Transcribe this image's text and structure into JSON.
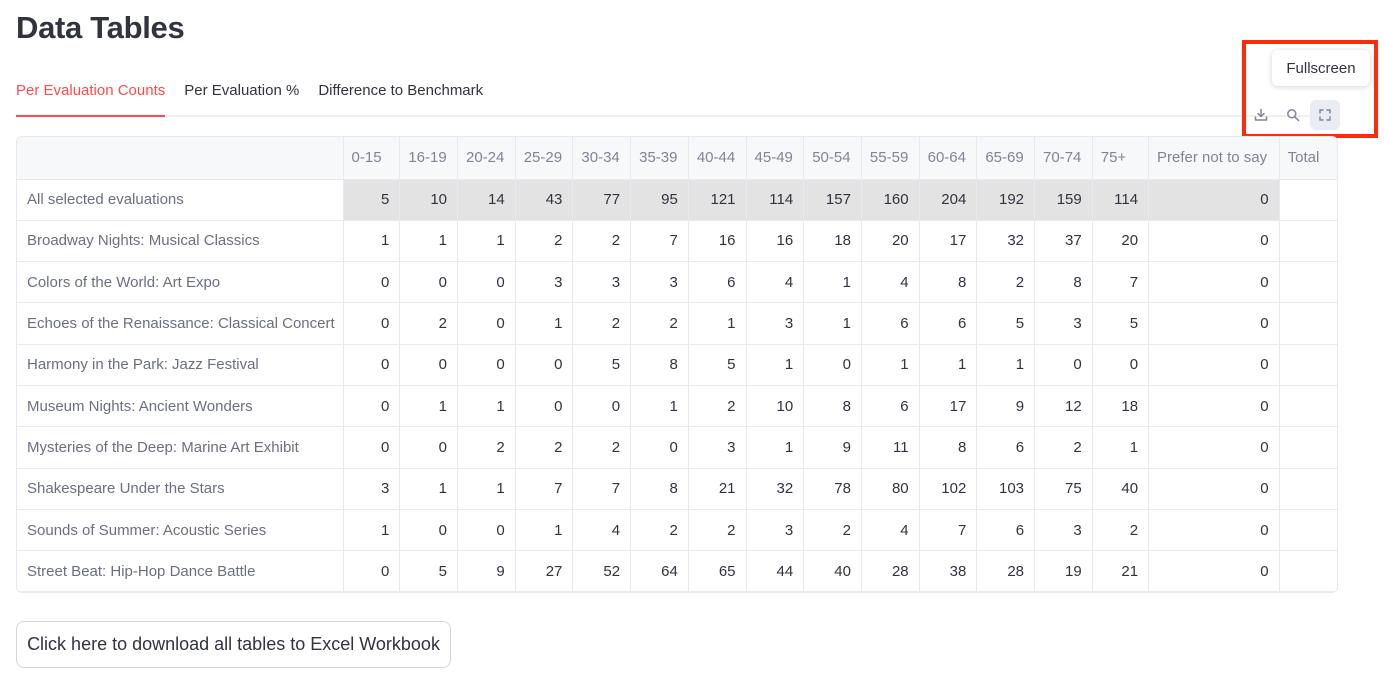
{
  "page": {
    "title": "Data Tables"
  },
  "tabs": [
    {
      "label": "Per Evaluation Counts",
      "active": true
    },
    {
      "label": "Per Evaluation %",
      "active": false
    },
    {
      "label": "Difference to Benchmark",
      "active": false
    }
  ],
  "toolbar": {
    "tooltip": "Fullscreen",
    "icons": [
      "download-icon",
      "search-icon",
      "fullscreen-icon"
    ]
  },
  "table": {
    "columns": [
      "",
      "0-15",
      "16-19",
      "20-24",
      "25-29",
      "30-34",
      "35-39",
      "40-44",
      "45-49",
      "50-54",
      "55-59",
      "60-64",
      "65-69",
      "70-74",
      "75+",
      "Prefer not to say",
      "Total"
    ],
    "rows": [
      {
        "label": "All selected evaluations",
        "values": [
          "5",
          "10",
          "14",
          "43",
          "77",
          "95",
          "121",
          "114",
          "157",
          "160",
          "204",
          "192",
          "159",
          "114",
          "0",
          ""
        ]
      },
      {
        "label": "Broadway Nights: Musical Classics",
        "values": [
          "1",
          "1",
          "1",
          "2",
          "2",
          "7",
          "16",
          "16",
          "18",
          "20",
          "17",
          "32",
          "37",
          "20",
          "0",
          ""
        ]
      },
      {
        "label": "Colors of the World: Art Expo",
        "values": [
          "0",
          "0",
          "0",
          "3",
          "3",
          "3",
          "6",
          "4",
          "1",
          "4",
          "8",
          "2",
          "8",
          "7",
          "0",
          ""
        ]
      },
      {
        "label": "Echoes of the Renaissance: Classical Concert",
        "values": [
          "0",
          "2",
          "0",
          "1",
          "2",
          "2",
          "1",
          "3",
          "1",
          "6",
          "6",
          "5",
          "3",
          "5",
          "0",
          ""
        ]
      },
      {
        "label": "Harmony in the Park: Jazz Festival",
        "values": [
          "0",
          "0",
          "0",
          "0",
          "5",
          "8",
          "5",
          "1",
          "0",
          "1",
          "1",
          "1",
          "0",
          "0",
          "0",
          ""
        ]
      },
      {
        "label": "Museum Nights: Ancient Wonders",
        "values": [
          "0",
          "1",
          "1",
          "0",
          "0",
          "1",
          "2",
          "10",
          "8",
          "6",
          "17",
          "9",
          "12",
          "18",
          "0",
          ""
        ]
      },
      {
        "label": "Mysteries of the Deep: Marine Art Exhibit",
        "values": [
          "0",
          "0",
          "2",
          "2",
          "2",
          "0",
          "3",
          "1",
          "9",
          "11",
          "8",
          "6",
          "2",
          "1",
          "0",
          ""
        ]
      },
      {
        "label": "Shakespeare Under the Stars",
        "values": [
          "3",
          "1",
          "1",
          "7",
          "7",
          "8",
          "21",
          "32",
          "78",
          "80",
          "102",
          "103",
          "75",
          "40",
          "0",
          ""
        ]
      },
      {
        "label": "Sounds of Summer: Acoustic Series",
        "values": [
          "1",
          "0",
          "0",
          "1",
          "4",
          "2",
          "2",
          "3",
          "2",
          "4",
          "7",
          "6",
          "3",
          "2",
          "0",
          ""
        ]
      },
      {
        "label": "Street Beat: Hip-Hop Dance Battle",
        "values": [
          "0",
          "5",
          "9",
          "27",
          "52",
          "64",
          "65",
          "44",
          "40",
          "28",
          "38",
          "28",
          "19",
          "21",
          "0",
          ""
        ]
      }
    ]
  },
  "download_button": {
    "label": "Click here to download all tables to Excel Workbook"
  },
  "colors": {
    "accent": "#ff4b4b",
    "highlight_box": "#ff2a0e",
    "summary_row_bg": "#e3e3e3"
  }
}
